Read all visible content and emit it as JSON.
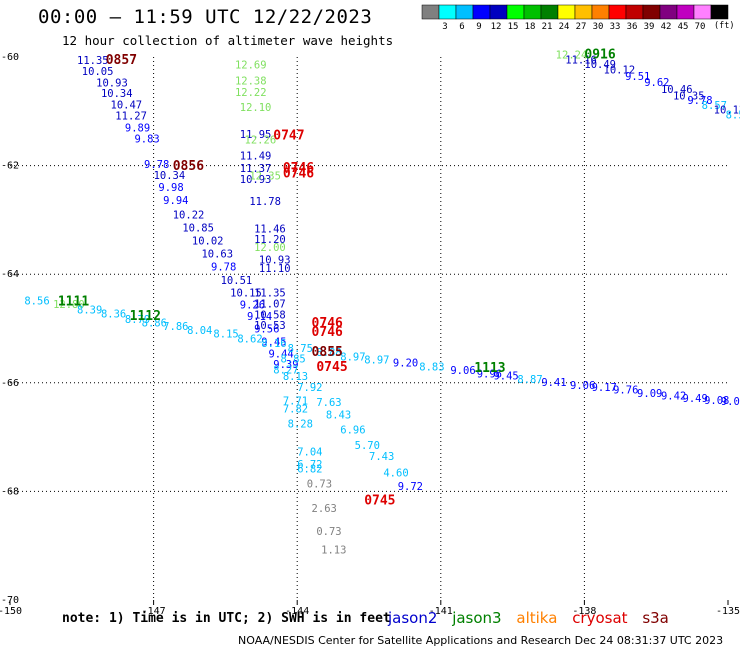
{
  "header": {
    "title": "00:00 – 11:59 UTC 12/22/2023",
    "subtitle": "12 hour collection of altimeter wave heights"
  },
  "colorbar": {
    "colors": [
      "#808080",
      "#00ffff",
      "#00bfff",
      "#0000ff",
      "#0000c0",
      "#00ff00",
      "#00c000",
      "#008000",
      "#ffff00",
      "#ffbf00",
      "#ff8000",
      "#ff0000",
      "#c00000",
      "#800000",
      "#800080",
      "#c000c0",
      "#ff80ff",
      "#000000"
    ],
    "labels": [
      "3",
      "6",
      "9",
      "12",
      "15",
      "18",
      "21",
      "24",
      "27",
      "30",
      "33",
      "36",
      "39",
      "42",
      "45",
      "70"
    ],
    "units": "(ft)"
  },
  "note": "note: 1) Time is in UTC; 2) SWH is in feet",
  "satellites": [
    {
      "name": "jason2",
      "color": "#0000cc"
    },
    {
      "name": "jason3",
      "color": "#008000"
    },
    {
      "name": "altika",
      "color": "#ff8000"
    },
    {
      "name": "cryosat",
      "color": "#dd0000"
    },
    {
      "name": "s3a",
      "color": "#800000"
    }
  ],
  "footer": "NOAA/NESDIS Center for Satellite Applications and Research    Dec 24 08:31:37 UTC 2023",
  "chart_data": {
    "type": "scatter",
    "title": "00:00 – 11:59 UTC 12/22/2023",
    "subtitle": "12 hour collection of altimeter wave heights",
    "xlim": [
      -150,
      -135
    ],
    "ylim": [
      -70,
      -60
    ],
    "xticks": [
      -150,
      -147,
      -144,
      -141,
      -138,
      -135
    ],
    "yticks": [
      -60,
      -62,
      -64,
      -66,
      -68,
      -70
    ],
    "xtick_labels": [
      "-150",
      "-147",
      "-144",
      "-141",
      "-138",
      "-135"
    ],
    "ytick_labels": [
      "-60",
      "-62",
      "-64",
      "-66",
      "-68",
      "-70"
    ],
    "grid": "dotted",
    "units": "ft",
    "points": [
      {
        "lon": -148.6,
        "lat": -60.13,
        "v": "11.35",
        "c": "#0000c0"
      },
      {
        "lon": -148.5,
        "lat": -60.33,
        "v": "10.05",
        "c": "#0000c0"
      },
      {
        "lon": -148.2,
        "lat": -60.54,
        "v": "10.93",
        "c": "#0000c0"
      },
      {
        "lon": -148.1,
        "lat": -60.74,
        "v": "10.34",
        "c": "#0000c0"
      },
      {
        "lon": -147.9,
        "lat": -60.95,
        "v": "10.47",
        "c": "#0000c0"
      },
      {
        "lon": -147.8,
        "lat": -61.15,
        "v": "11.27",
        "c": "#0000c0"
      },
      {
        "lon": -147.6,
        "lat": -61.37,
        "v": "9.89",
        "c": "#0000ff"
      },
      {
        "lon": -147.4,
        "lat": -61.57,
        "v": "9.83",
        "c": "#0000ff"
      },
      {
        "lon": -147.2,
        "lat": -62.04,
        "v": "9.78",
        "c": "#0000ff"
      },
      {
        "lon": -147.0,
        "lat": -62.25,
        "v": "10.34",
        "c": "#0000c0"
      },
      {
        "lon": -146.9,
        "lat": -62.47,
        "v": "9.98",
        "c": "#0000ff"
      },
      {
        "lon": -146.8,
        "lat": -62.71,
        "v": "9.94",
        "c": "#0000ff"
      },
      {
        "lon": -146.6,
        "lat": -62.97,
        "v": "10.22",
        "c": "#0000c0"
      },
      {
        "lon": -146.4,
        "lat": -63.21,
        "v": "10.85",
        "c": "#0000c0"
      },
      {
        "lon": -146.2,
        "lat": -63.45,
        "v": "10.02",
        "c": "#0000c0"
      },
      {
        "lon": -146.0,
        "lat": -63.69,
        "v": "10.63",
        "c": "#0000c0"
      },
      {
        "lon": -145.8,
        "lat": -63.93,
        "v": "9.78",
        "c": "#0000ff"
      },
      {
        "lon": -145.6,
        "lat": -64.18,
        "v": "10.51",
        "c": "#0000c0"
      },
      {
        "lon": -145.4,
        "lat": -64.41,
        "v": "10.15",
        "c": "#0000c0"
      },
      {
        "lon": -145.2,
        "lat": -64.63,
        "v": "9.26",
        "c": "#0000ff"
      },
      {
        "lon": -145.05,
        "lat": -64.84,
        "v": "9.14",
        "c": "#0000ff"
      },
      {
        "lon": -144.9,
        "lat": -65.07,
        "v": "9.56",
        "c": "#0000ff"
      },
      {
        "lon": -144.75,
        "lat": -65.31,
        "v": "9.45",
        "c": "#0000ff"
      },
      {
        "lon": -144.6,
        "lat": -65.53,
        "v": "9.44",
        "c": "#0000ff"
      },
      {
        "lon": -144.5,
        "lat": -65.73,
        "v": "9.39",
        "c": "#0000ff"
      },
      {
        "lon": -144.9,
        "lat": -64.41,
        "v": "11.35",
        "c": "#0000c0"
      },
      {
        "lon": -144.9,
        "lat": -64.61,
        "v": "11.07",
        "c": "#0000c0"
      },
      {
        "lon": -144.9,
        "lat": -64.82,
        "v": "10.58",
        "c": "#0000c0"
      },
      {
        "lon": -144.9,
        "lat": -65.01,
        "v": "10.53",
        "c": "#0000c0"
      },
      {
        "lon": -145.2,
        "lat": -61.49,
        "v": "11.95",
        "c": "#0000c0"
      },
      {
        "lon": -145.2,
        "lat": -61.89,
        "v": "11.49",
        "c": "#0000c0"
      },
      {
        "lon": -145.2,
        "lat": -62.12,
        "v": "11.37",
        "c": "#0000c0"
      },
      {
        "lon": -145.2,
        "lat": -62.32,
        "v": "10.93",
        "c": "#0000c0"
      },
      {
        "lon": -145.0,
        "lat": -62.73,
        "v": "11.78",
        "c": "#0000c0"
      },
      {
        "lon": -144.9,
        "lat": -63.23,
        "v": "11.46",
        "c": "#0000c0"
      },
      {
        "lon": -144.9,
        "lat": -63.43,
        "v": "11.20",
        "c": "#0000c0"
      },
      {
        "lon": -144.8,
        "lat": -63.8,
        "v": "10.93",
        "c": "#0000c0"
      },
      {
        "lon": -144.8,
        "lat": -63.96,
        "v": "11.10",
        "c": "#0000c0"
      },
      {
        "lon": -145.3,
        "lat": -60.21,
        "v": "12.69",
        "c": "#80e060"
      },
      {
        "lon": -145.3,
        "lat": -60.51,
        "v": "12.38",
        "c": "#80e060"
      },
      {
        "lon": -145.3,
        "lat": -60.72,
        "v": "12.22",
        "c": "#80e060"
      },
      {
        "lon": -145.2,
        "lat": -60.99,
        "v": "12.10",
        "c": "#80e060"
      },
      {
        "lon": -145.1,
        "lat": -61.59,
        "v": "12.26",
        "c": "#80e060"
      },
      {
        "lon": -145.0,
        "lat": -62.26,
        "v": "12.35",
        "c": "#80e060"
      },
      {
        "lon": -144.9,
        "lat": -63.57,
        "v": "12.00",
        "c": "#80e060"
      },
      {
        "lon": -144.35,
        "lat": -65.63,
        "v": "8.85",
        "c": "#00bfff"
      },
      {
        "lon": -144.5,
        "lat": -65.83,
        "v": "8.27",
        "c": "#00bfff"
      },
      {
        "lon": -144.3,
        "lat": -65.95,
        "v": "8.13",
        "c": "#00bfff"
      },
      {
        "lon": -144.0,
        "lat": -66.15,
        "v": "7.92",
        "c": "#00bfff"
      },
      {
        "lon": -144.3,
        "lat": -66.4,
        "v": "7.71",
        "c": "#00bfff"
      },
      {
        "lon": -144.3,
        "lat": -66.55,
        "v": "7.82",
        "c": "#00bfff"
      },
      {
        "lon": -143.6,
        "lat": -66.43,
        "v": "7.63",
        "c": "#00bfff"
      },
      {
        "lon": -143.4,
        "lat": -66.66,
        "v": "8.43",
        "c": "#00bfff"
      },
      {
        "lon": -144.2,
        "lat": -66.82,
        "v": "8.28",
        "c": "#00bfff"
      },
      {
        "lon": -143.1,
        "lat": -66.93,
        "v": "6.96",
        "c": "#00bfff"
      },
      {
        "lon": -142.8,
        "lat": -67.22,
        "v": "5.70",
        "c": "#00bfff"
      },
      {
        "lon": -144.0,
        "lat": -67.34,
        "v": "7.04",
        "c": "#00bfff"
      },
      {
        "lon": -142.5,
        "lat": -67.42,
        "v": "7.43",
        "c": "#00bfff"
      },
      {
        "lon": -144.0,
        "lat": -67.57,
        "v": "6.72",
        "c": "#00bfff"
      },
      {
        "lon": -144.0,
        "lat": -67.65,
        "v": "6.82",
        "c": "#00bfff"
      },
      {
        "lon": -142.2,
        "lat": -67.73,
        "v": "4.60",
        "c": "#00bfff"
      },
      {
        "lon": -141.9,
        "lat": -67.97,
        "v": "9.72",
        "c": "#0000ff"
      },
      {
        "lon": -143.8,
        "lat": -67.93,
        "v": "0.73",
        "c": "#808080"
      },
      {
        "lon": -143.7,
        "lat": -68.38,
        "v": "2.63",
        "c": "#808080"
      },
      {
        "lon": -143.6,
        "lat": -68.8,
        "v": "0.73",
        "c": "#808080"
      },
      {
        "lon": -143.5,
        "lat": -69.14,
        "v": "1.13",
        "c": "#808080"
      },
      {
        "lon": -149.7,
        "lat": -64.56,
        "v": "8.56",
        "c": "#00bfff"
      },
      {
        "lon": -149.1,
        "lat": -64.62,
        "v": "12.80",
        "c": "#80e060"
      },
      {
        "lon": -148.6,
        "lat": -64.72,
        "v": "8.39",
        "c": "#00bfff"
      },
      {
        "lon": -148.1,
        "lat": -64.8,
        "v": "8.36",
        "c": "#00bfff"
      },
      {
        "lon": -147.6,
        "lat": -64.9,
        "v": "8.79",
        "c": "#00bfff"
      },
      {
        "lon": -147.25,
        "lat": -64.96,
        "v": "8.86",
        "c": "#00bfff"
      },
      {
        "lon": -146.8,
        "lat": -65.03,
        "v": "7.86",
        "c": "#00bfff"
      },
      {
        "lon": -146.3,
        "lat": -65.1,
        "v": "8.04",
        "c": "#00bfff"
      },
      {
        "lon": -145.75,
        "lat": -65.17,
        "v": "8.15",
        "c": "#00bfff"
      },
      {
        "lon": -145.25,
        "lat": -65.26,
        "v": "8.62",
        "c": "#00bfff"
      },
      {
        "lon": -144.75,
        "lat": -65.34,
        "v": "8.16",
        "c": "#00bfff"
      },
      {
        "lon": -144.2,
        "lat": -65.43,
        "v": "8.75",
        "c": "#00bfff"
      },
      {
        "lon": -143.6,
        "lat": -65.51,
        "v": "8.88",
        "c": "#00bfff"
      },
      {
        "lon": -143.1,
        "lat": -65.59,
        "v": "8.97",
        "c": "#00bfff"
      },
      {
        "lon": -142.6,
        "lat": -65.64,
        "v": "8.97",
        "c": "#00bfff"
      },
      {
        "lon": -142.0,
        "lat": -65.7,
        "v": "9.20",
        "c": "#0000ff"
      },
      {
        "lon": -141.45,
        "lat": -65.77,
        "v": "8.83",
        "c": "#00bfff"
      },
      {
        "lon": -140.8,
        "lat": -65.84,
        "v": "9.06",
        "c": "#0000ff"
      },
      {
        "lon": -140.25,
        "lat": -65.9,
        "v": "9.96",
        "c": "#0000ff"
      },
      {
        "lon": -139.9,
        "lat": -65.94,
        "v": "9.45",
        "c": "#0000ff"
      },
      {
        "lon": -139.4,
        "lat": -66.0,
        "v": "8.87",
        "c": "#00bfff"
      },
      {
        "lon": -138.9,
        "lat": -66.06,
        "v": "9.41",
        "c": "#0000ff"
      },
      {
        "lon": -138.3,
        "lat": -66.11,
        "v": "9.06",
        "c": "#0000ff"
      },
      {
        "lon": -137.85,
        "lat": -66.15,
        "v": "9.17",
        "c": "#0000ff"
      },
      {
        "lon": -137.4,
        "lat": -66.2,
        "v": "9.76",
        "c": "#0000ff"
      },
      {
        "lon": -136.9,
        "lat": -66.26,
        "v": "9.09",
        "c": "#0000ff"
      },
      {
        "lon": -136.4,
        "lat": -66.31,
        "v": "9.42",
        "c": "#0000ff"
      },
      {
        "lon": -135.95,
        "lat": -66.35,
        "v": "9.49",
        "c": "#0000ff"
      },
      {
        "lon": -135.5,
        "lat": -66.39,
        "v": "9.08",
        "c": "#0000ff"
      },
      {
        "lon": -135.15,
        "lat": -66.41,
        "v": "9.0",
        "c": "#0000ff"
      },
      {
        "lon": -138.6,
        "lat": -60.03,
        "v": "12.24",
        "c": "#80e060"
      },
      {
        "lon": -138.4,
        "lat": -60.12,
        "v": "11.16",
        "c": "#0000c0"
      },
      {
        "lon": -138.0,
        "lat": -60.2,
        "v": "10.49",
        "c": "#0000c0"
      },
      {
        "lon": -137.6,
        "lat": -60.3,
        "v": "10.12",
        "c": "#0000c0"
      },
      {
        "lon": -137.15,
        "lat": -60.42,
        "v": "9.51",
        "c": "#0000ff"
      },
      {
        "lon": -136.75,
        "lat": -60.53,
        "v": "9.62",
        "c": "#0000ff"
      },
      {
        "lon": -136.4,
        "lat": -60.66,
        "v": "10.46",
        "c": "#0000c0"
      },
      {
        "lon": -136.15,
        "lat": -60.78,
        "v": "10.35",
        "c": "#0000c0"
      },
      {
        "lon": -135.85,
        "lat": -60.87,
        "v": "9.78",
        "c": "#0000ff"
      },
      {
        "lon": -135.55,
        "lat": -60.96,
        "v": "8.57",
        "c": "#00bfff"
      },
      {
        "lon": -135.3,
        "lat": -61.04,
        "v": "10.13",
        "c": "#0000c0"
      },
      {
        "lon": -135.05,
        "lat": -61.13,
        "v": "8.5",
        "c": "#00bfff"
      }
    ],
    "times": [
      {
        "lon": -148.0,
        "lat": -60.13,
        "t": "0857",
        "c": "#800000"
      },
      {
        "lon": -146.6,
        "lat": -62.08,
        "t": "0856",
        "c": "#800000"
      },
      {
        "lon": -144.5,
        "lat": -61.52,
        "t": "0747",
        "c": "#dd0000"
      },
      {
        "lon": -144.3,
        "lat": -62.12,
        "t": "0746",
        "c": "#dd0000"
      },
      {
        "lon": -144.3,
        "lat": -62.22,
        "t": "0746",
        "c": "#dd0000"
      },
      {
        "lon": -143.7,
        "lat": -64.97,
        "t": "0746",
        "c": "#dd0000"
      },
      {
        "lon": -143.7,
        "lat": -65.14,
        "t": "0746",
        "c": "#dd0000"
      },
      {
        "lon": -143.7,
        "lat": -65.51,
        "t": "0855",
        "c": "#800000"
      },
      {
        "lon": -143.6,
        "lat": -65.78,
        "t": "0745",
        "c": "#dd0000"
      },
      {
        "lon": -142.6,
        "lat": -68.24,
        "t": "0745",
        "c": "#dd0000"
      },
      {
        "lon": -149.0,
        "lat": -64.58,
        "t": "1111",
        "c": "#008000"
      },
      {
        "lon": -147.5,
        "lat": -64.84,
        "t": "1112",
        "c": "#008000"
      },
      {
        "lon": -140.3,
        "lat": -65.8,
        "t": "1113",
        "c": "#008000"
      },
      {
        "lon": -138.0,
        "lat": -60.03,
        "t": "0916",
        "c": "#008000"
      }
    ]
  }
}
